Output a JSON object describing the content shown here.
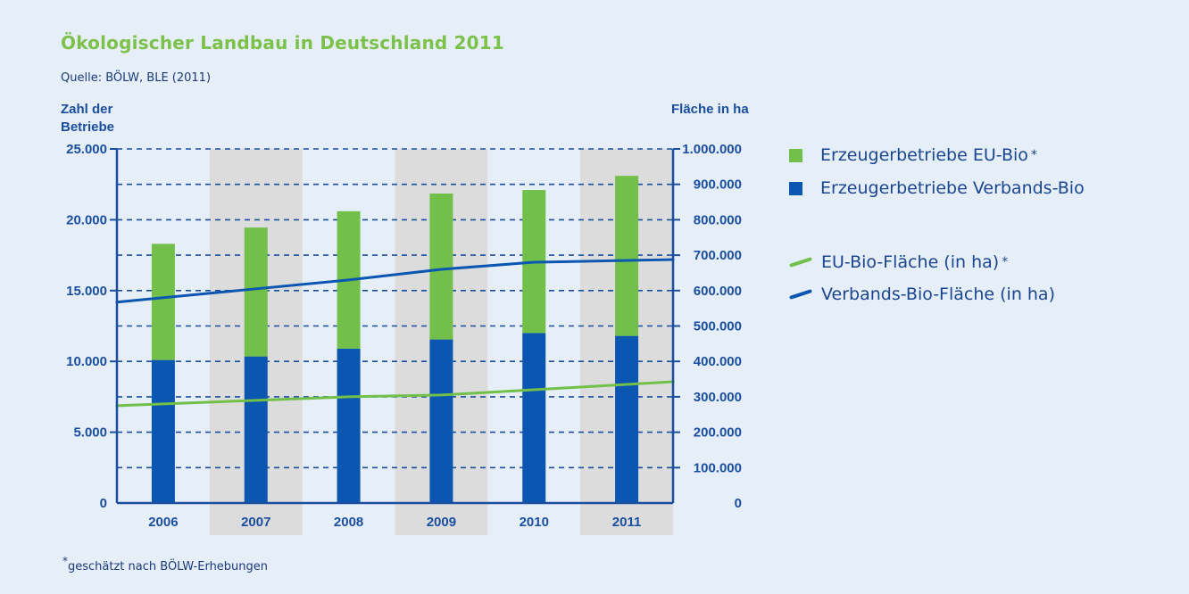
{
  "title": "Ökologischer Landbau in Deutschland 2011",
  "source": "Quelle: BÖLW, BLE (2011)",
  "footnote": {
    "marker": "*",
    "text": "geschätzt nach BÖLW-Erhebungen"
  },
  "colors": {
    "green": "#72c04a",
    "blue": "#0a56b0",
    "axis": "#1a4fa0",
    "band": "#dcdcdc"
  },
  "legend": [
    {
      "label": "Erzeugerbetriebe EU-Bio",
      "marker": "*",
      "kind": "square",
      "color": "#72c04a"
    },
    {
      "label": "Erzeugerbetriebe Verbands-Bio",
      "marker": "",
      "kind": "square",
      "color": "#0a56b0"
    },
    {
      "label": "EU-Bio-Fläche (in ha)",
      "marker": "*",
      "kind": "line",
      "color": "#72c04a"
    },
    {
      "label": "Verbands-Bio-Fläche (in ha)",
      "marker": "",
      "kind": "line",
      "color": "#0a56b0"
    }
  ],
  "chart_data": {
    "type": "bar",
    "categories": [
      "2006",
      "2007",
      "2008",
      "2009",
      "2010",
      "2011"
    ],
    "y_left": {
      "label_line1": "Zahl der",
      "label_line2": "Betriebe",
      "range": [
        0,
        25000
      ],
      "ticks": [
        0,
        5000,
        10000,
        15000,
        20000,
        25000
      ],
      "tick_labels": [
        "0",
        "5.000",
        "10.000",
        "15.000",
        "20.000",
        "25.000"
      ]
    },
    "y_right": {
      "label": "Fläche in ha",
      "range": [
        0,
        1000000
      ],
      "ticks": [
        0,
        100000,
        200000,
        300000,
        400000,
        500000,
        600000,
        700000,
        800000,
        900000,
        1000000
      ],
      "tick_labels": [
        "0",
        "100.000",
        "200.000",
        "300.000",
        "400.000",
        "500.000",
        "600.000",
        "700.000",
        "800.000",
        "900.000",
        "1.000.000"
      ]
    },
    "bars": [
      {
        "name": "Erzeugerbetriebe Verbands-Bio",
        "values": [
          10100,
          10350,
          10900,
          11550,
          12000,
          11800
        ]
      },
      {
        "name": "Erzeugerbetriebe EU-Bio",
        "values": [
          8200,
          9100,
          9700,
          10300,
          10100,
          11300
        ]
      }
    ],
    "lines": [
      {
        "name": "EU-Bio-Fläche (in ha)",
        "values": [
          280000,
          290000,
          300000,
          305000,
          320000,
          335000
        ]
      },
      {
        "name": "Verbands-Bio-Fläche (in ha)",
        "values": [
          580000,
          605000,
          630000,
          660000,
          680000,
          685000
        ]
      }
    ],
    "grid": true,
    "legend_position": "right"
  }
}
